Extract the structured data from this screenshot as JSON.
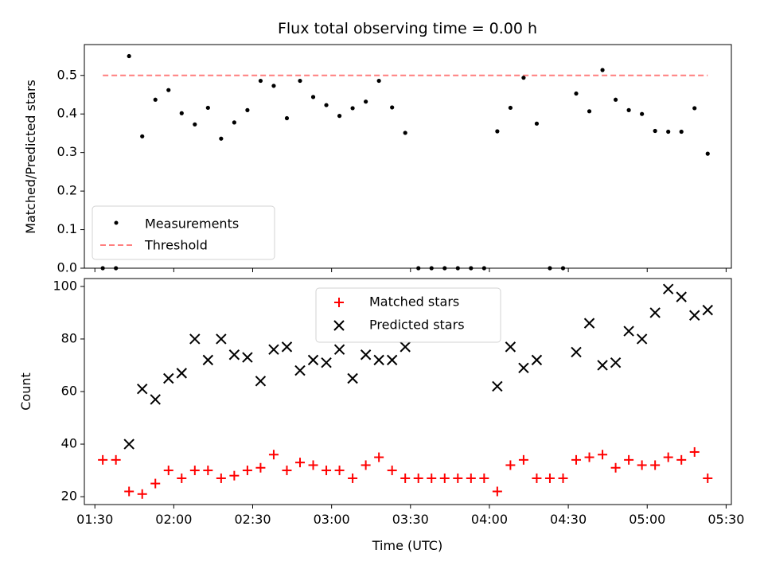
{
  "chart_data": [
    {
      "type": "scatter",
      "title": "Flux total observing time = 0.00 h",
      "xlabel": "",
      "ylabel": "Matched/Predicted stars",
      "ylim": [
        0,
        0.58
      ],
      "yticks": [
        0.0,
        0.1,
        0.2,
        0.3,
        0.4,
        0.5
      ],
      "ytick_labels": [
        "0.0",
        "0.1",
        "0.2",
        "0.3",
        "0.4",
        "0.5"
      ],
      "x_axis": "time (UTC)",
      "xlim": [
        "01:26",
        "05:32"
      ],
      "legend_position": "lower-left",
      "series": [
        {
          "name": "Measurements",
          "marker": "dot",
          "color": "#000000",
          "points": [
            [
              "01:33",
              0.0
            ],
            [
              "01:38",
              0.0
            ],
            [
              "01:43",
              0.55
            ],
            [
              "01:48",
              0.342
            ],
            [
              "01:53",
              0.437
            ],
            [
              "01:58",
              0.462
            ],
            [
              "02:03",
              0.402
            ],
            [
              "02:08",
              0.373
            ],
            [
              "02:13",
              0.416
            ],
            [
              "02:18",
              0.336
            ],
            [
              "02:23",
              0.378
            ],
            [
              "02:28",
              0.41
            ],
            [
              "02:33",
              0.486
            ],
            [
              "02:38",
              0.473
            ],
            [
              "02:43",
              0.389
            ],
            [
              "02:48",
              0.486
            ],
            [
              "02:53",
              0.444
            ],
            [
              "02:58",
              0.423
            ],
            [
              "03:03",
              0.395
            ],
            [
              "03:08",
              0.415
            ],
            [
              "03:13",
              0.432
            ],
            [
              "03:18",
              0.486
            ],
            [
              "03:23",
              0.417
            ],
            [
              "03:28",
              0.351
            ],
            [
              "03:33",
              0.0
            ],
            [
              "03:38",
              0.0
            ],
            [
              "03:43",
              0.0
            ],
            [
              "03:48",
              0.0
            ],
            [
              "03:53",
              0.0
            ],
            [
              "03:58",
              0.0
            ],
            [
              "04:03",
              0.355
            ],
            [
              "04:08",
              0.416
            ],
            [
              "04:13",
              0.494
            ],
            [
              "04:18",
              0.375
            ],
            [
              "04:23",
              0.0
            ],
            [
              "04:28",
              0.0
            ],
            [
              "04:33",
              0.453
            ],
            [
              "04:38",
              0.407
            ],
            [
              "04:43",
              0.514
            ],
            [
              "04:48",
              0.437
            ],
            [
              "04:53",
              0.41
            ],
            [
              "04:58",
              0.4
            ],
            [
              "05:03",
              0.356
            ],
            [
              "05:08",
              0.354
            ],
            [
              "05:13",
              0.354
            ],
            [
              "05:18",
              0.415
            ],
            [
              "05:23",
              0.297
            ]
          ]
        },
        {
          "name": "Threshold",
          "marker": "dashed-line",
          "color": "#ff7f7f",
          "points": [
            [
              "01:33",
              0.5
            ],
            [
              "05:23",
              0.5
            ]
          ]
        }
      ]
    },
    {
      "type": "scatter",
      "title": "",
      "xlabel": "Time (UTC)",
      "ylabel": "Count",
      "ylim": [
        17,
        103
      ],
      "yticks": [
        20,
        40,
        60,
        80,
        100
      ],
      "ytick_labels": [
        "20",
        "40",
        "60",
        "80",
        "100"
      ],
      "xlim": [
        "01:26",
        "05:32"
      ],
      "xticks": [
        "01:30",
        "02:00",
        "02:30",
        "03:00",
        "03:30",
        "04:00",
        "04:30",
        "05:00",
        "05:30"
      ],
      "xtick_labels": [
        "01:30",
        "02:00",
        "02:30",
        "03:00",
        "03:30",
        "04:00",
        "04:30",
        "05:00",
        "05:30"
      ],
      "legend_position": "top-center",
      "series": [
        {
          "name": "Matched stars",
          "marker": "plus",
          "color": "#ff0000",
          "points": [
            [
              "01:33",
              34
            ],
            [
              "01:38",
              34
            ],
            [
              "01:43",
              22
            ],
            [
              "01:48",
              21
            ],
            [
              "01:53",
              25
            ],
            [
              "01:58",
              30
            ],
            [
              "02:03",
              27
            ],
            [
              "02:08",
              30
            ],
            [
              "02:13",
              30
            ],
            [
              "02:18",
              27
            ],
            [
              "02:23",
              28
            ],
            [
              "02:28",
              30
            ],
            [
              "02:33",
              31
            ],
            [
              "02:38",
              36
            ],
            [
              "02:43",
              30
            ],
            [
              "02:48",
              33
            ],
            [
              "02:53",
              32
            ],
            [
              "02:58",
              30
            ],
            [
              "03:03",
              30
            ],
            [
              "03:08",
              27
            ],
            [
              "03:13",
              32
            ],
            [
              "03:18",
              35
            ],
            [
              "03:23",
              30
            ],
            [
              "03:28",
              27
            ],
            [
              "03:33",
              27
            ],
            [
              "03:38",
              27
            ],
            [
              "03:43",
              27
            ],
            [
              "03:48",
              27
            ],
            [
              "03:53",
              27
            ],
            [
              "03:58",
              27
            ],
            [
              "04:03",
              22
            ],
            [
              "04:08",
              32
            ],
            [
              "04:13",
              34
            ],
            [
              "04:18",
              27
            ],
            [
              "04:23",
              27
            ],
            [
              "04:28",
              27
            ],
            [
              "04:33",
              34
            ],
            [
              "04:38",
              35
            ],
            [
              "04:43",
              36
            ],
            [
              "04:48",
              31
            ],
            [
              "04:53",
              34
            ],
            [
              "04:58",
              32
            ],
            [
              "05:03",
              32
            ],
            [
              "05:08",
              35
            ],
            [
              "05:13",
              34
            ],
            [
              "05:18",
              37
            ],
            [
              "05:23",
              27
            ]
          ]
        },
        {
          "name": "Predicted stars",
          "marker": "x",
          "color": "#000000",
          "points": [
            [
              "01:43",
              40
            ],
            [
              "01:48",
              61
            ],
            [
              "01:53",
              57
            ],
            [
              "01:58",
              65
            ],
            [
              "02:03",
              67
            ],
            [
              "02:08",
              80
            ],
            [
              "02:13",
              72
            ],
            [
              "02:18",
              80
            ],
            [
              "02:23",
              74
            ],
            [
              "02:28",
              73
            ],
            [
              "02:33",
              64
            ],
            [
              "02:38",
              76
            ],
            [
              "02:43",
              77
            ],
            [
              "02:48",
              68
            ],
            [
              "02:53",
              72
            ],
            [
              "02:58",
              71
            ],
            [
              "03:03",
              76
            ],
            [
              "03:08",
              65
            ],
            [
              "03:13",
              74
            ],
            [
              "03:18",
              72
            ],
            [
              "03:23",
              72
            ],
            [
              "03:28",
              77
            ],
            [
              "04:03",
              62
            ],
            [
              "04:08",
              77
            ],
            [
              "04:13",
              69
            ],
            [
              "04:18",
              72
            ],
            [
              "04:33",
              75
            ],
            [
              "04:38",
              86
            ],
            [
              "04:43",
              70
            ],
            [
              "04:48",
              71
            ],
            [
              "04:53",
              83
            ],
            [
              "04:58",
              80
            ],
            [
              "05:03",
              90
            ],
            [
              "05:08",
              99
            ],
            [
              "05:13",
              96
            ],
            [
              "05:18",
              89
            ],
            [
              "05:23",
              91
            ]
          ]
        }
      ]
    }
  ]
}
